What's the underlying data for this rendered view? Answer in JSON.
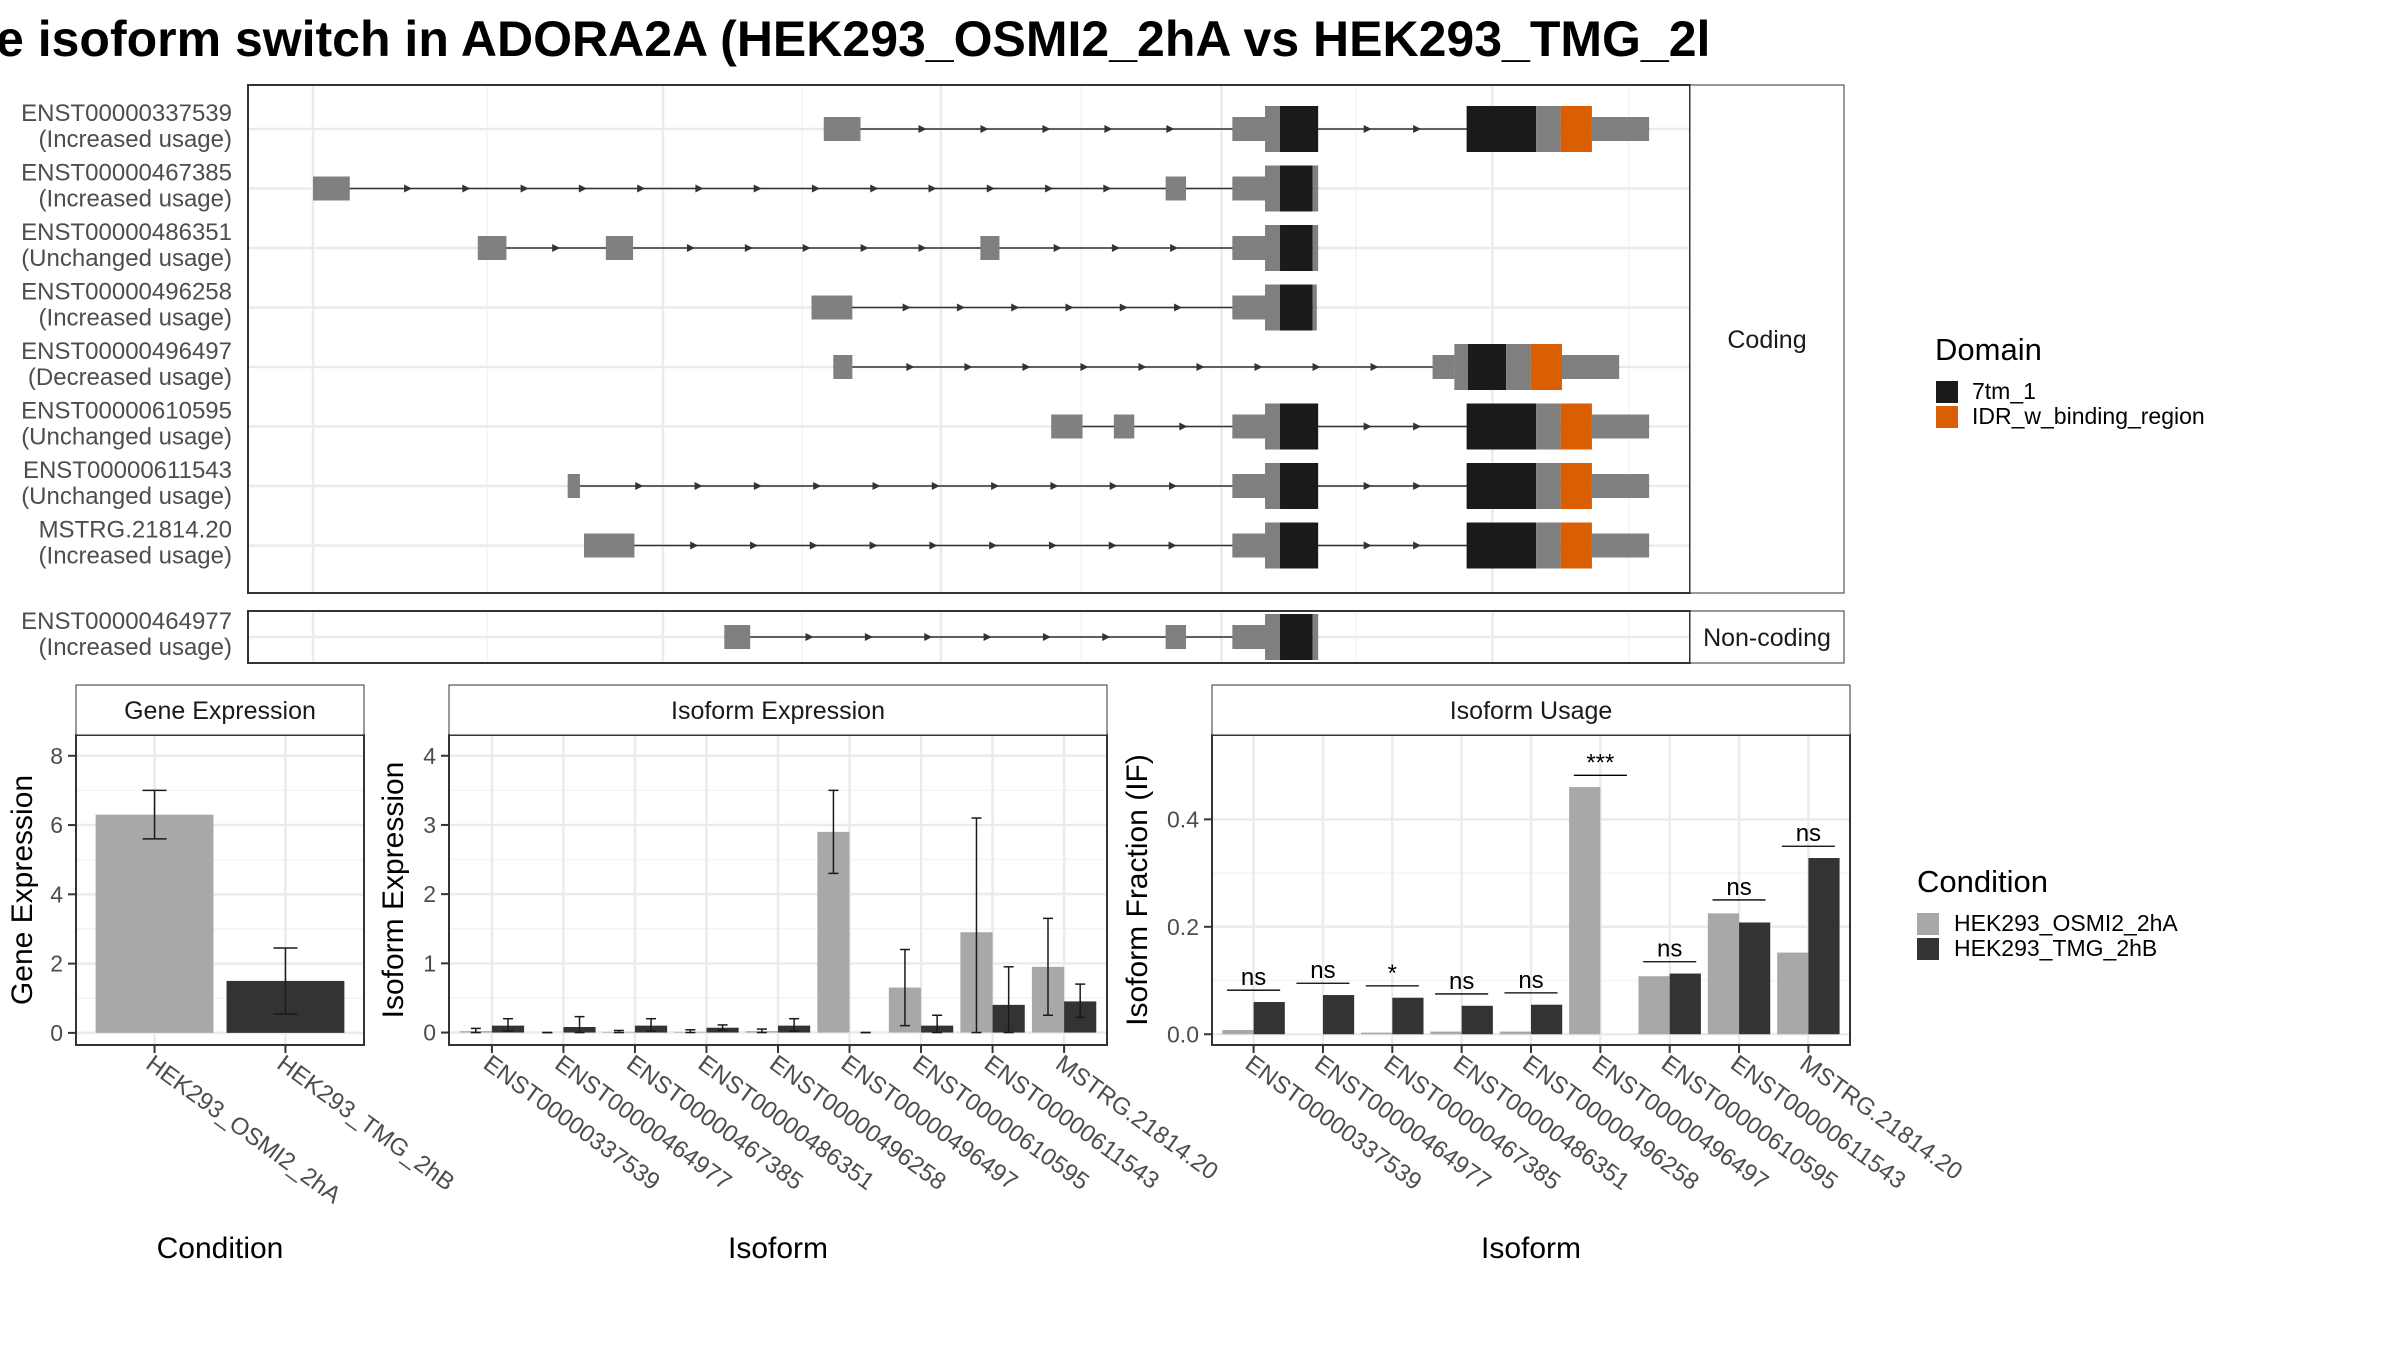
{
  "title": "e isoform switch in ADORA2A (HEK293_OSMI2_2hA vs HEK293_TMG_2l",
  "colors": {
    "utr": "#808080",
    "cds": "#7f7f7f",
    "domain_7tm_1": "#1a1a1a",
    "domain_idr": "#d95f02",
    "condition_a": "#a8a8a8",
    "condition_b": "#333333",
    "line": "#333333"
  },
  "chart_data": [
    {
      "type": "gene_structure",
      "panel": "transcripts",
      "facets": [
        {
          "label": "Coding",
          "transcripts": [
            {
              "id": "ENST00000337539",
              "usage": "(Increased usage)",
              "exons": [
                [
                  0.375,
                  0.027,
                  "utr"
                ],
                [
                  0.675,
                  0.025,
                  "utr"
                ],
                [
                  0.699,
                  0.011,
                  "cds"
                ],
                [
                  0.71,
                  0.028,
                  "7tm_1"
                ],
                [
                  0.847,
                  0.051,
                  "7tm_1"
                ],
                [
                  0.898,
                  0.018,
                  "cds"
                ],
                [
                  0.916,
                  0.023,
                  "idr"
                ],
                [
                  0.939,
                  0.042,
                  "utr"
                ]
              ]
            },
            {
              "id": "ENST00000467385",
              "usage": "(Increased usage)",
              "exons": [
                [
                  0.0,
                  0.027,
                  "utr"
                ],
                [
                  0.626,
                  0.015,
                  "utr"
                ],
                [
                  0.675,
                  0.025,
                  "utr"
                ],
                [
                  0.699,
                  0.011,
                  "cds"
                ],
                [
                  0.71,
                  0.024,
                  "7tm_1"
                ],
                [
                  0.734,
                  0.004,
                  "cds"
                ]
              ]
            },
            {
              "id": "ENST00000486351",
              "usage": "(Unchanged usage)",
              "exons": [
                [
                  0.121,
                  0.021,
                  "utr"
                ],
                [
                  0.215,
                  0.02,
                  "utr"
                ],
                [
                  0.49,
                  0.014,
                  "utr"
                ],
                [
                  0.675,
                  0.025,
                  "utr"
                ],
                [
                  0.699,
                  0.011,
                  "cds"
                ],
                [
                  0.71,
                  0.024,
                  "7tm_1"
                ],
                [
                  0.734,
                  0.004,
                  "cds"
                ]
              ]
            },
            {
              "id": "ENST00000496258",
              "usage": "(Increased usage)",
              "exons": [
                [
                  0.366,
                  0.03,
                  "utr"
                ],
                [
                  0.675,
                  0.025,
                  "utr"
                ],
                [
                  0.699,
                  0.011,
                  "cds"
                ],
                [
                  0.71,
                  0.024,
                  "7tm_1"
                ],
                [
                  0.734,
                  0.003,
                  "cds"
                ]
              ]
            },
            {
              "id": "ENST00000496497",
              "usage": "(Decreased usage)",
              "exons": [
                [
                  0.382,
                  0.014,
                  "utr"
                ],
                [
                  0.822,
                  0.016,
                  "utr"
                ],
                [
                  0.838,
                  0.01,
                  "cds"
                ],
                [
                  0.848,
                  0.028,
                  "7tm_1"
                ],
                [
                  0.876,
                  0.018,
                  "cds"
                ],
                [
                  0.894,
                  0.023,
                  "idr"
                ],
                [
                  0.917,
                  0.042,
                  "utr"
                ]
              ]
            },
            {
              "id": "ENST00000610595",
              "usage": "(Unchanged usage)",
              "exons": [
                [
                  0.542,
                  0.023,
                  "utr"
                ],
                [
                  0.588,
                  0.015,
                  "utr"
                ],
                [
                  0.675,
                  0.025,
                  "utr"
                ],
                [
                  0.699,
                  0.011,
                  "cds"
                ],
                [
                  0.71,
                  0.028,
                  "7tm_1"
                ],
                [
                  0.847,
                  0.051,
                  "7tm_1"
                ],
                [
                  0.898,
                  0.018,
                  "cds"
                ],
                [
                  0.916,
                  0.023,
                  "idr"
                ],
                [
                  0.939,
                  0.042,
                  "utr"
                ]
              ]
            },
            {
              "id": "ENST00000611543",
              "usage": "(Unchanged usage)",
              "exons": [
                [
                  0.187,
                  0.009,
                  "utr"
                ],
                [
                  0.675,
                  0.025,
                  "utr"
                ],
                [
                  0.699,
                  0.011,
                  "cds"
                ],
                [
                  0.71,
                  0.028,
                  "7tm_1"
                ],
                [
                  0.847,
                  0.051,
                  "7tm_1"
                ],
                [
                  0.898,
                  0.018,
                  "cds"
                ],
                [
                  0.916,
                  0.023,
                  "idr"
                ],
                [
                  0.939,
                  0.042,
                  "utr"
                ]
              ]
            },
            {
              "id": "MSTRG.21814.20",
              "usage": "(Increased usage)",
              "exons": [
                [
                  0.199,
                  0.037,
                  "utr"
                ],
                [
                  0.675,
                  0.025,
                  "utr"
                ],
                [
                  0.699,
                  0.011,
                  "cds"
                ],
                [
                  0.71,
                  0.028,
                  "7tm_1"
                ],
                [
                  0.847,
                  0.051,
                  "7tm_1"
                ],
                [
                  0.898,
                  0.018,
                  "cds"
                ],
                [
                  0.916,
                  0.023,
                  "idr"
                ],
                [
                  0.939,
                  0.042,
                  "utr"
                ]
              ]
            }
          ]
        },
        {
          "label": "Non-coding",
          "transcripts": [
            {
              "id": "ENST00000464977",
              "usage": "(Increased usage)",
              "exons": [
                [
                  0.302,
                  0.019,
                  "utr"
                ],
                [
                  0.626,
                  0.015,
                  "utr"
                ],
                [
                  0.675,
                  0.025,
                  "utr"
                ],
                [
                  0.699,
                  0.011,
                  "cds"
                ],
                [
                  0.71,
                  0.024,
                  "7tm_1"
                ],
                [
                  0.734,
                  0.004,
                  "cds"
                ]
              ]
            }
          ]
        }
      ],
      "legend": {
        "title": "Domain",
        "items": [
          {
            "label": "7tm_1",
            "key": "domain_7tm_1"
          },
          {
            "label": "IDR_w_binding_region",
            "key": "domain_idr"
          }
        ]
      }
    },
    {
      "type": "bar",
      "panel": "gene_expression",
      "strip": "Gene Expression",
      "xlabel": "Condition",
      "ylabel": "Gene Expression",
      "ylim": [
        -0.35,
        8.6
      ],
      "yticks": [
        0,
        2,
        4,
        6,
        8
      ],
      "categories": [
        "HEK293_OSMI2_2hA",
        "HEK293_TMG_2hB"
      ],
      "series": [
        {
          "values": [
            6.3,
            1.5
          ],
          "err_low": [
            5.6,
            0.55
          ],
          "err_high": [
            7.0,
            2.45
          ],
          "colorKey": "condition_ab"
        }
      ]
    },
    {
      "type": "bar",
      "panel": "isoform_expression",
      "strip": "Isoform Expression",
      "xlabel": "Isoform",
      "ylabel": "Isoform Expression",
      "ylim": [
        -0.18,
        4.3
      ],
      "yticks": [
        0,
        1,
        2,
        3,
        4
      ],
      "categories": [
        "ENST00000337539",
        "ENST00000464977",
        "ENST00000467385",
        "ENST00000486351",
        "ENST00000496258",
        "ENST00000496497",
        "ENST00000610595",
        "ENST00000611543",
        "MSTRG.21814.20"
      ],
      "series": [
        {
          "name": "HEK293_OSMI2_2hA",
          "values": [
            0.02,
            0.0,
            0.01,
            0.01,
            0.02,
            2.9,
            0.65,
            1.45,
            0.95
          ],
          "err_low": [
            0.0,
            0.0,
            0.0,
            0.0,
            0.0,
            2.3,
            0.1,
            0.0,
            0.25
          ],
          "err_high": [
            0.06,
            0.0,
            0.03,
            0.04,
            0.05,
            3.5,
            1.2,
            3.1,
            1.65
          ]
        },
        {
          "name": "HEK293_TMG_2hB",
          "values": [
            0.1,
            0.08,
            0.1,
            0.07,
            0.1,
            0.0,
            0.1,
            0.4,
            0.45
          ],
          "err_low": [
            0.02,
            0.0,
            0.02,
            0.03,
            0.02,
            0.0,
            0.0,
            0.0,
            0.22
          ],
          "err_high": [
            0.2,
            0.23,
            0.2,
            0.11,
            0.2,
            0.0,
            0.25,
            0.95,
            0.7
          ]
        }
      ]
    },
    {
      "type": "bar",
      "panel": "isoform_usage",
      "strip": "Isoform Usage",
      "xlabel": "Isoform",
      "ylabel": "Isoform Fraction (IF)",
      "ylim": [
        -0.02,
        0.557
      ],
      "yticks": [
        0.0,
        0.2,
        0.4
      ],
      "ytick_labels": [
        "0.0",
        "0.2",
        "0.4"
      ],
      "categories": [
        "ENST00000337539",
        "ENST00000464977",
        "ENST00000467385",
        "ENST00000486351",
        "ENST00000496258",
        "ENST00000496497",
        "ENST00000610595",
        "ENST00000611543",
        "MSTRG.21814.20"
      ],
      "series": [
        {
          "name": "HEK293_OSMI2_2hA",
          "values": [
            0.008,
            0.0,
            0.003,
            0.005,
            0.005,
            0.46,
            0.108,
            0.225,
            0.152
          ]
        },
        {
          "name": "HEK293_TMG_2hB",
          "values": [
            0.06,
            0.073,
            0.068,
            0.053,
            0.055,
            0.0,
            0.113,
            0.208,
            0.328
          ]
        }
      ],
      "significance": [
        "ns",
        "ns",
        "*",
        "ns",
        "ns",
        "***",
        "ns",
        "ns",
        "ns"
      ],
      "sig_y": [
        0.082,
        0.095,
        0.09,
        0.075,
        0.077,
        0.482,
        0.135,
        0.25,
        0.35
      ]
    }
  ],
  "condition_legend": {
    "title": "Condition",
    "items": [
      {
        "label": "HEK293_OSMI2_2hA",
        "key": "condition_a"
      },
      {
        "label": "HEK293_TMG_2hB",
        "key": "condition_b"
      }
    ]
  }
}
